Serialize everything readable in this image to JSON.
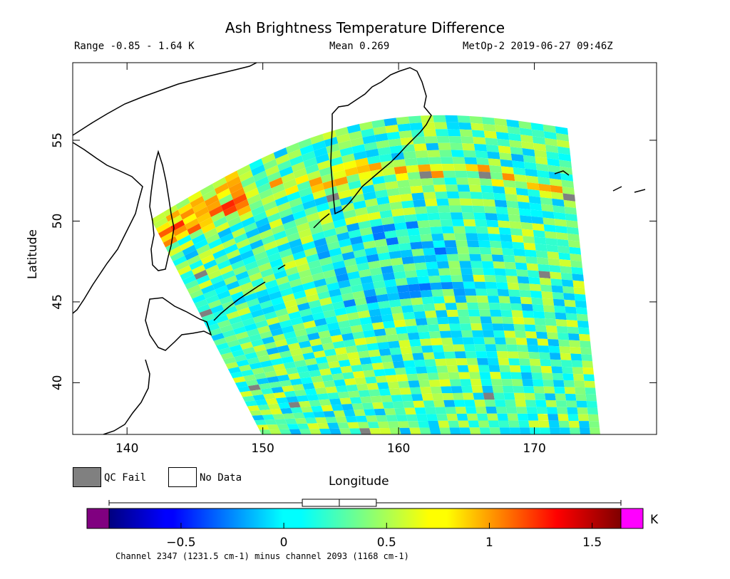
{
  "header": {
    "title": "Ash Brightness Temperature Difference",
    "range": "Range -0.85 - 1.64 K",
    "mean": "Mean 0.269",
    "satellite": "MetOp-2 2019-06-27 09:46Z"
  },
  "legend": {
    "qc_fail": "QC Fail",
    "no_data": "No Data",
    "qc_color": "#808080"
  },
  "axes": {
    "xlabel": "Longitude",
    "ylabel": "Latitude",
    "xlim": [
      136,
      179
    ],
    "ylim": [
      36.8,
      59.8
    ],
    "x_ticks": [
      140,
      150,
      160,
      170
    ],
    "y_ticks": [
      40,
      45,
      50,
      55
    ]
  },
  "colorbar": {
    "unit": "K",
    "range": [
      -0.85,
      1.64
    ],
    "ticks": [
      "−0.5",
      "0",
      "0.5",
      "1",
      "1.5"
    ],
    "tick_values": [
      -0.5,
      0,
      0.5,
      1,
      1.5
    ],
    "under_color": "#800080",
    "over_color": "#ff00ff",
    "boxplot": {
      "whisker_low": -0.85,
      "q1": 0.09,
      "median": 0.27,
      "q3": 0.45,
      "whisker_high": 1.64
    }
  },
  "footnote": "Channel 2347 (1231.5 cm-1) minus channel 2093 (1168 cm-1)"
}
